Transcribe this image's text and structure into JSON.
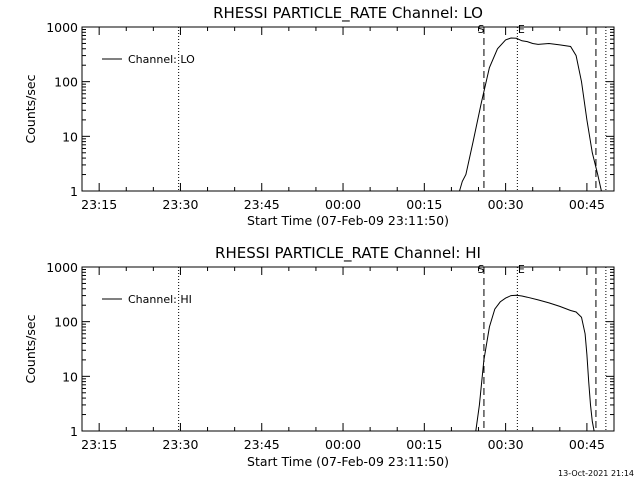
{
  "chart_data": [
    {
      "type": "line",
      "title": "RHESSI PARTICLE_RATE Channel: LO",
      "xlabel": "Start Time (07-Feb-09 23:11:50)",
      "ylabel": "Counts/sec",
      "yscale": "log",
      "ylim": [
        1,
        1000
      ],
      "xlim": [
        "23:11:50",
        "00:50:00"
      ],
      "xticks": [
        "23:15",
        "23:30",
        "23:45",
        "00:00",
        "00:15",
        "00:30",
        "00:45"
      ],
      "yticks": [
        "1",
        "10",
        "100",
        "1000"
      ],
      "legend": {
        "label": "Channel: LO",
        "placement": "top-left"
      },
      "event_markers": [
        {
          "label": "S",
          "time": "00:26:00",
          "style": "dashed"
        },
        {
          "label": "E",
          "time": "00:32:10",
          "style": "dotted"
        }
      ],
      "other_lines": [
        {
          "time": "23:29:40",
          "style": "dotted"
        },
        {
          "time": "00:46:40",
          "style": "dashed"
        },
        {
          "time": "00:48:30",
          "style": "dotted"
        }
      ],
      "x": [
        "00:21:30",
        "00:22:00",
        "00:22:40",
        "00:24:00",
        "00:25:30",
        "00:27:00",
        "00:28:30",
        "00:30:00",
        "00:31:00",
        "00:32:00",
        "00:33:00",
        "00:34:00",
        "00:35:00",
        "00:36:00",
        "00:38:00",
        "00:40:00",
        "00:42:00",
        "00:43:00",
        "00:44:00",
        "00:45:00",
        "00:46:00",
        "00:47:00",
        "00:47:40"
      ],
      "series": [
        {
          "values": [
            1,
            1.5,
            2,
            8,
            40,
            180,
            400,
            580,
            630,
            620,
            560,
            540,
            500,
            480,
            500,
            470,
            440,
            300,
            100,
            20,
            5,
            2,
            1
          ]
        }
      ]
    },
    {
      "type": "line",
      "title": "RHESSI PARTICLE_RATE Channel: HI",
      "xlabel": "Start Time (07-Feb-09 23:11:50)",
      "ylabel": "Counts/sec",
      "yscale": "log",
      "ylim": [
        1,
        1000
      ],
      "xlim": [
        "23:11:50",
        "00:50:00"
      ],
      "xticks": [
        "23:15",
        "23:30",
        "23:45",
        "00:00",
        "00:15",
        "00:30",
        "00:45"
      ],
      "yticks": [
        "1",
        "10",
        "100",
        "1000"
      ],
      "legend": {
        "label": "Channel: HI",
        "placement": "top-left"
      },
      "event_markers": [
        {
          "label": "S",
          "time": "00:26:00",
          "style": "dashed"
        },
        {
          "label": "E",
          "time": "00:32:10",
          "style": "dotted"
        }
      ],
      "other_lines": [
        {
          "time": "23:29:40",
          "style": "dotted"
        },
        {
          "time": "00:46:40",
          "style": "dashed"
        },
        {
          "time": "00:48:30",
          "style": "dotted"
        }
      ],
      "x": [
        "00:24:30",
        "00:25:10",
        "00:26:00",
        "00:27:00",
        "00:28:00",
        "00:29:00",
        "00:30:00",
        "00:31:00",
        "00:32:00",
        "00:33:00",
        "00:34:00",
        "00:36:00",
        "00:38:00",
        "00:40:00",
        "00:42:00",
        "00:43:00",
        "00:44:00",
        "00:44:40",
        "00:45:00",
        "00:45:20",
        "00:45:40",
        "00:46:00",
        "00:46:20"
      ],
      "series": [
        {
          "values": [
            1,
            3,
            20,
            80,
            170,
            230,
            270,
            300,
            305,
            295,
            280,
            250,
            220,
            190,
            160,
            150,
            120,
            60,
            25,
            8,
            3,
            1.5,
            1
          ]
        }
      ]
    }
  ],
  "footer": {
    "timestamp": "13-Oct-2021 21:14"
  }
}
